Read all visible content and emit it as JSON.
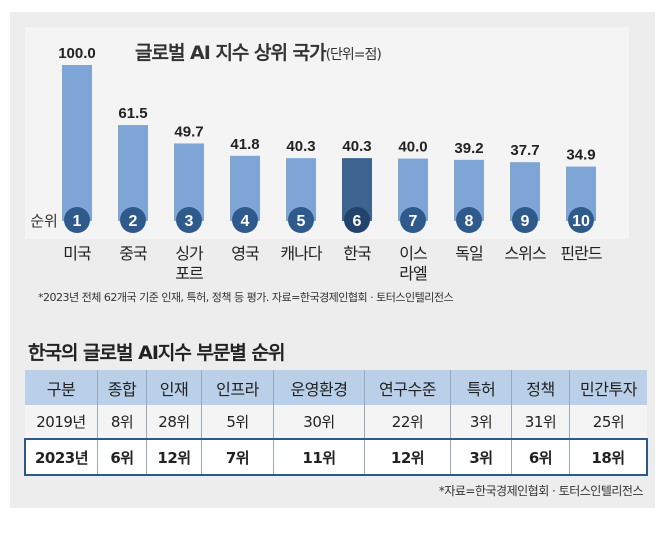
{
  "chart_data": {
    "type": "bar",
    "title": "글로벌 AI 지수 상위 국가",
    "unit": "(단위=점)",
    "rank_label": "순위",
    "categories": [
      [
        "미국"
      ],
      [
        "중국"
      ],
      [
        "싱가",
        "포르"
      ],
      [
        "영국"
      ],
      [
        "캐나다"
      ],
      [
        "한국"
      ],
      [
        "이스",
        "라엘"
      ],
      [
        "독일"
      ],
      [
        "스위스"
      ],
      [
        "핀란드"
      ]
    ],
    "ranks": [
      "1",
      "2",
      "3",
      "4",
      "5",
      "6",
      "7",
      "8",
      "9",
      "10"
    ],
    "values": [
      100.0,
      61.5,
      49.7,
      41.8,
      40.3,
      40.3,
      40.0,
      39.2,
      37.7,
      34.9
    ],
    "value_labels": [
      "100.0",
      "61.5",
      "49.7",
      "41.8",
      "40.3",
      "40.3",
      "40.0",
      "39.2",
      "37.7",
      "34.9"
    ],
    "highlight": "한국",
    "ylim": [
      0,
      100
    ],
    "colors": {
      "bar": "#7ea5d5",
      "highlight_bar": "#3d6391",
      "circle": "#2f5a8c",
      "highlight_circle": "#22436c"
    },
    "note": "*2023년 전체 62개국 기준 인재, 특허, 정책 등 평가. 자료=한국경제인협회 · 토터스인텔리전스"
  },
  "table": {
    "title": "한국의 글로벌 AI지수 부문별 순위",
    "headers": [
      "구분",
      "종합",
      "인재",
      "인프라",
      "운영환경",
      "연구수준",
      "특허",
      "정책",
      "민간투자"
    ],
    "rows": [
      [
        "2019년",
        "8위",
        "28위",
        "5위",
        "30위",
        "22위",
        "3위",
        "31위",
        "25위"
      ],
      [
        "2023년",
        "6위",
        "12위",
        "7위",
        "11위",
        "12위",
        "3위",
        "6위",
        "18위"
      ]
    ],
    "source": "*자료=한국경제인협회 · 토터스인텔리전스"
  }
}
